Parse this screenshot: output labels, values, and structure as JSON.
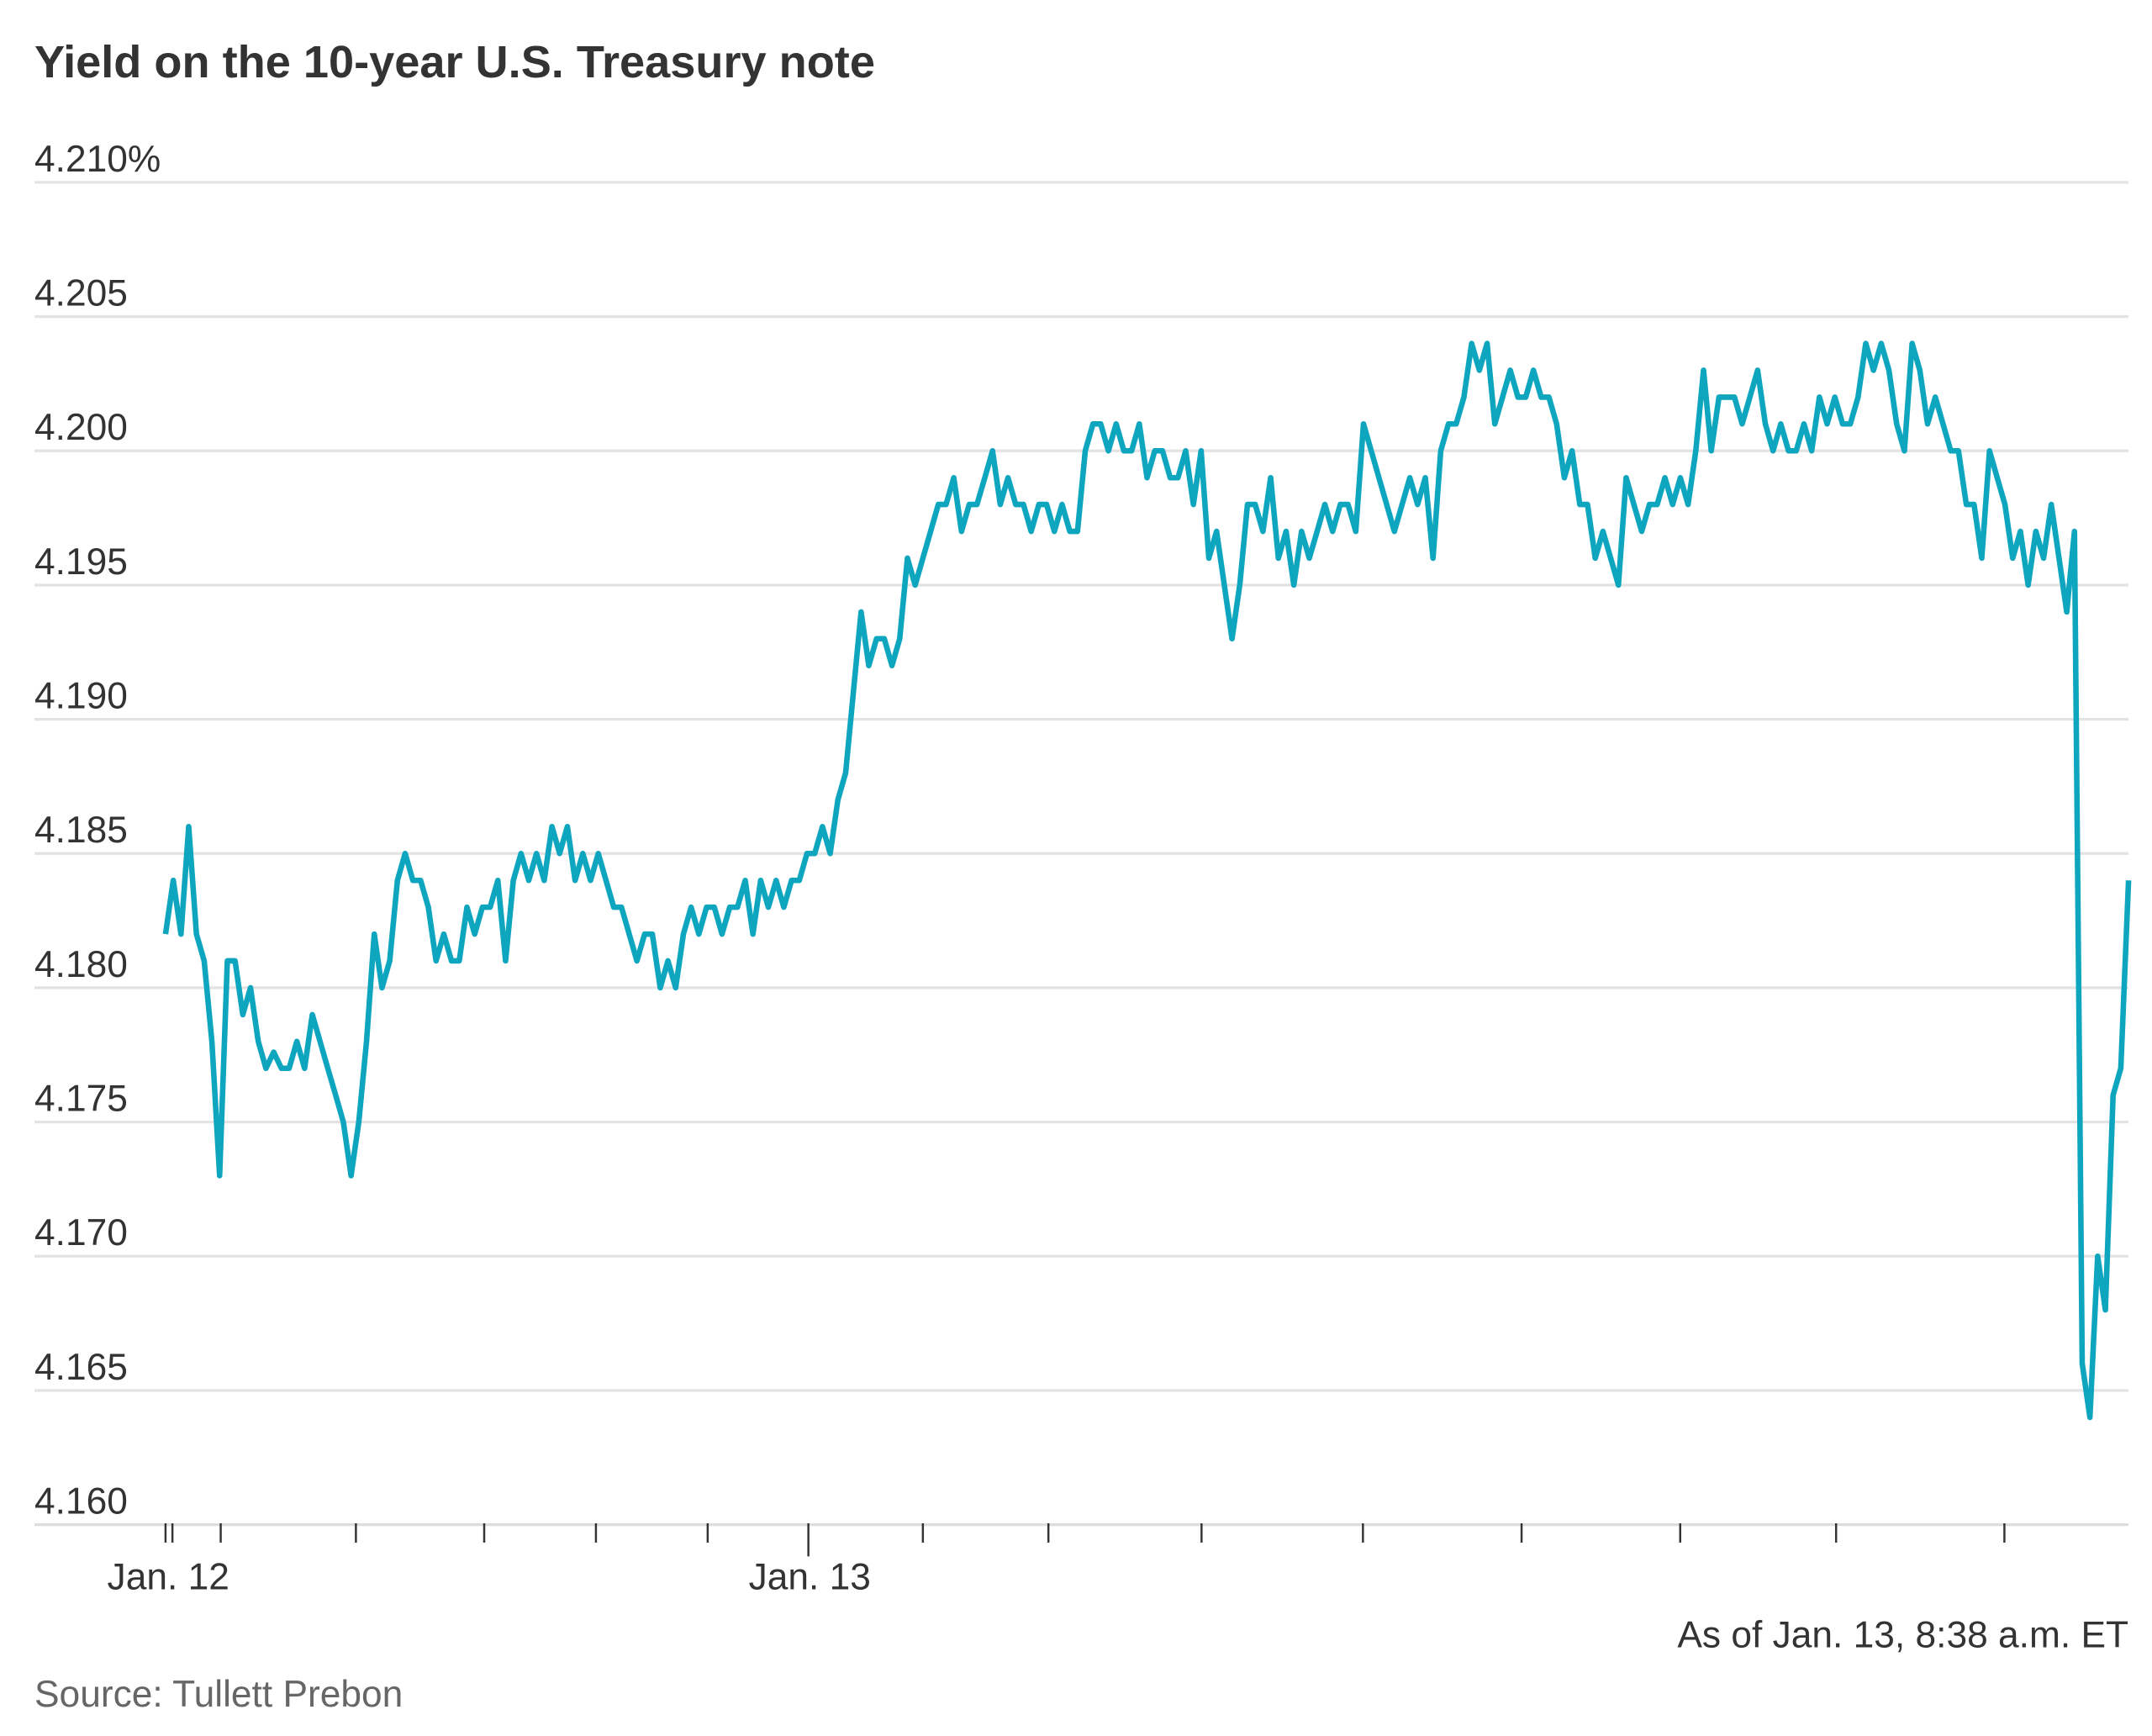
{
  "chart_data": {
    "type": "line",
    "title": "Yield on the 10-year U.S. Treasury note",
    "xlabel": "",
    "ylabel": "",
    "ylim": [
      4.16,
      4.21
    ],
    "y_ticks": [
      "4.210%",
      "4.205",
      "4.200",
      "4.195",
      "4.190",
      "4.185",
      "4.180",
      "4.175",
      "4.170",
      "4.165",
      "4.160"
    ],
    "y_tick_values": [
      4.21,
      4.205,
      4.2,
      4.195,
      4.19,
      4.185,
      4.18,
      4.175,
      4.17,
      4.165,
      4.16
    ],
    "x_tick_labels": [
      "Jan. 12",
      "Jan. 13"
    ],
    "grid": true,
    "line_color": "#0ea5bf",
    "series": [
      {
        "values": [
          4.182,
          4.184,
          4.182,
          4.186,
          4.182,
          4.181,
          4.178,
          4.173,
          4.181,
          4.181,
          4.179,
          4.18,
          4.178,
          4.177,
          4.1776,
          4.177,
          4.177,
          4.178,
          4.177,
          4.179,
          4.178,
          4.177,
          4.176,
          4.175,
          4.173,
          4.175,
          4.178,
          4.182,
          4.18,
          4.181,
          4.184,
          4.185,
          4.184,
          4.184,
          4.183,
          4.181,
          4.182,
          4.181,
          4.181,
          4.183,
          4.182,
          4.183,
          4.183,
          4.184,
          4.181,
          4.184,
          4.185,
          4.184,
          4.185,
          4.184,
          4.186,
          4.185,
          4.186,
          4.184,
          4.185,
          4.184,
          4.185,
          4.184,
          4.183,
          4.183,
          4.182,
          4.181,
          4.182,
          4.182,
          4.18,
          4.181,
          4.18,
          4.182,
          4.183,
          4.182,
          4.183,
          4.183,
          4.182,
          4.183,
          4.183,
          4.184,
          4.182,
          4.184,
          4.183,
          4.184,
          4.183,
          4.184,
          4.184,
          4.185,
          4.185,
          4.186,
          4.185,
          4.187,
          4.188,
          4.191,
          4.194,
          4.192,
          4.193,
          4.193,
          4.192,
          4.193,
          4.196,
          4.195,
          4.196,
          4.197,
          4.198,
          4.198,
          4.199,
          4.197,
          4.198,
          4.198,
          4.199,
          4.2,
          4.198,
          4.199,
          4.198,
          4.198,
          4.197,
          4.198,
          4.198,
          4.197,
          4.198,
          4.197,
          4.197,
          4.2,
          4.201,
          4.201,
          4.2,
          4.201,
          4.2,
          4.2,
          4.201,
          4.199,
          4.2,
          4.2,
          4.199,
          4.199,
          4.2,
          4.198,
          4.2,
          4.196,
          4.197,
          4.195,
          4.193,
          4.195,
          4.198,
          4.198,
          4.197,
          4.199,
          4.196,
          4.197,
          4.195,
          4.197,
          4.196,
          4.197,
          4.198,
          4.197,
          4.198,
          4.198,
          4.197,
          4.201,
          4.2,
          4.199,
          4.198,
          4.197,
          4.198,
          4.199,
          4.198,
          4.199,
          4.196,
          4.2,
          4.201,
          4.201,
          4.202,
          4.204,
          4.203,
          4.204,
          4.201,
          4.202,
          4.203,
          4.202,
          4.202,
          4.203,
          4.202,
          4.202,
          4.201,
          4.199,
          4.2,
          4.198,
          4.198,
          4.196,
          4.197,
          4.196,
          4.195,
          4.199,
          4.198,
          4.197,
          4.198,
          4.198,
          4.199,
          4.198,
          4.199,
          4.198,
          4.2,
          4.203,
          4.2,
          4.202,
          4.202,
          4.202,
          4.201,
          4.202,
          4.203,
          4.201,
          4.2,
          4.201,
          4.2,
          4.2,
          4.201,
          4.2,
          4.202,
          4.201,
          4.202,
          4.201,
          4.201,
          4.202,
          4.204,
          4.203,
          4.204,
          4.203,
          4.201,
          4.2,
          4.204,
          4.203,
          4.201,
          4.202,
          4.201,
          4.2,
          4.2,
          4.198,
          4.198,
          4.196,
          4.2,
          4.199,
          4.198,
          4.196,
          4.197,
          4.195,
          4.197,
          4.196,
          4.198,
          4.196,
          4.194,
          4.197,
          4.166,
          4.164,
          4.17,
          4.168,
          4.176,
          4.177,
          4.184
        ]
      }
    ],
    "annotation": "As of Jan. 13, 8:38 a.m. ET",
    "source": "Source: Tullett Prebon"
  }
}
